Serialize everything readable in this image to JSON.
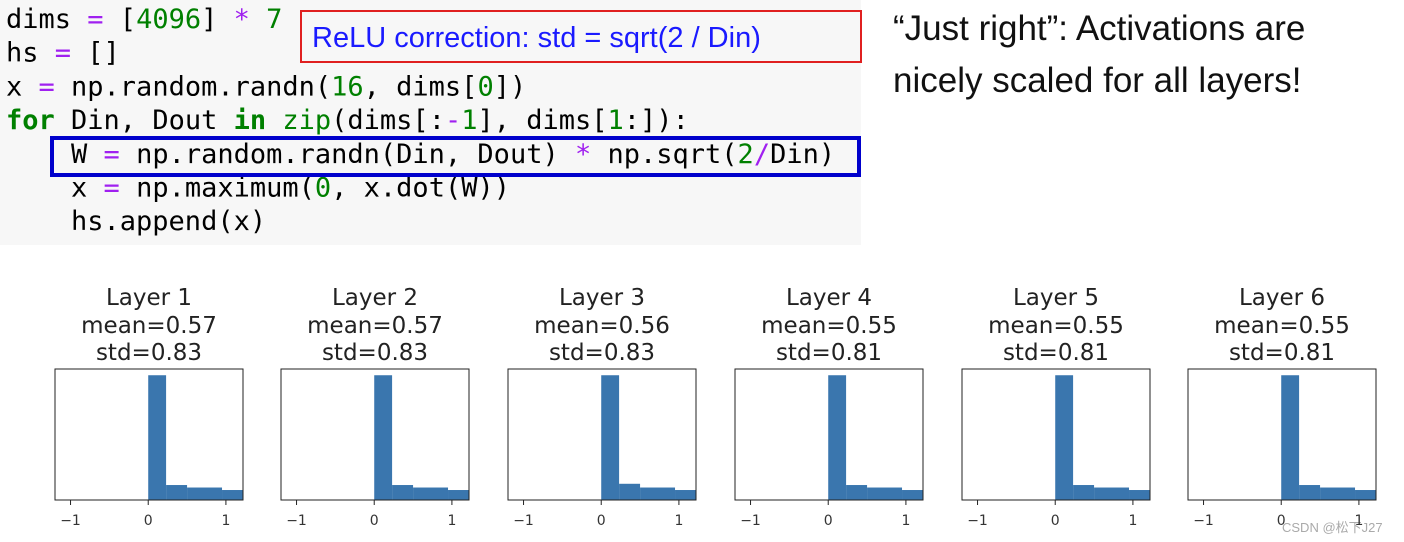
{
  "code": {
    "lines": [
      [
        {
          "text": "dims ",
          "color": "#000"
        },
        {
          "text": "=",
          "color": "#a020f0"
        },
        {
          "text": " [",
          "color": "#000"
        },
        {
          "text": "4096",
          "color": "#008000"
        },
        {
          "text": "] ",
          "color": "#000"
        },
        {
          "text": "*",
          "color": "#a020f0"
        },
        {
          "text": " ",
          "color": "#000"
        },
        {
          "text": "7",
          "color": "#008000"
        }
      ],
      [
        {
          "text": "hs ",
          "color": "#000"
        },
        {
          "text": "=",
          "color": "#a020f0"
        },
        {
          "text": " []",
          "color": "#000"
        }
      ],
      [
        {
          "text": "x ",
          "color": "#000"
        },
        {
          "text": "=",
          "color": "#a020f0"
        },
        {
          "text": " np.random.randn(",
          "color": "#000"
        },
        {
          "text": "16",
          "color": "#008000"
        },
        {
          "text": ", dims[",
          "color": "#000"
        },
        {
          "text": "0",
          "color": "#008000"
        },
        {
          "text": "])",
          "color": "#000"
        }
      ],
      [
        {
          "text": "for",
          "color": "#008000",
          "bold": true
        },
        {
          "text": " Din, Dout ",
          "color": "#000"
        },
        {
          "text": "in",
          "color": "#008000",
          "bold": true
        },
        {
          "text": " ",
          "color": "#000"
        },
        {
          "text": "zip",
          "color": "#008000"
        },
        {
          "text": "(dims[:",
          "color": "#000"
        },
        {
          "text": "-",
          "color": "#a020f0"
        },
        {
          "text": "1",
          "color": "#008000"
        },
        {
          "text": "], dims[",
          "color": "#000"
        },
        {
          "text": "1",
          "color": "#008000"
        },
        {
          "text": ":]):",
          "color": "#000"
        }
      ],
      [
        {
          "text": "    W ",
          "color": "#000"
        },
        {
          "text": "=",
          "color": "#a020f0"
        },
        {
          "text": " np.random.randn(Din, Dout) ",
          "color": "#000"
        },
        {
          "text": "*",
          "color": "#a020f0"
        },
        {
          "text": " np.sqrt(",
          "color": "#000"
        },
        {
          "text": "2",
          "color": "#008000"
        },
        {
          "text": "/",
          "color": "#a020f0"
        },
        {
          "text": "Din)",
          "color": "#000"
        }
      ],
      [
        {
          "text": "    x ",
          "color": "#000"
        },
        {
          "text": "=",
          "color": "#a020f0"
        },
        {
          "text": " np.maximum(",
          "color": "#000"
        },
        {
          "text": "0",
          "color": "#008000"
        },
        {
          "text": ", x.dot(W))",
          "color": "#000"
        }
      ],
      [
        {
          "text": "    hs.append(x)",
          "color": "#000"
        }
      ]
    ]
  },
  "note": "ReLU correction: std = sqrt(2 / Din)",
  "side_text": [
    "“Just right”: Activations are",
    "nicely scaled for all layers!"
  ],
  "watermark": "CSDN @松下J27",
  "chart_data": [
    {
      "type": "histogram",
      "title": "Layer 1",
      "annotations": [
        "mean=0.57",
        "std=0.83"
      ],
      "color": "#3a76ae",
      "bins": [
        0,
        0.23,
        0.5,
        0.95,
        1.22
      ],
      "values": [
        1.0,
        0.12,
        0.1,
        0.08
      ],
      "xlim": [
        -1.2,
        1.22
      ],
      "ylim": [
        0,
        1.05
      ],
      "xticks": [
        {
          "value": -1,
          "label": "−1"
        },
        0,
        1
      ]
    },
    {
      "type": "histogram",
      "title": "Layer 2",
      "annotations": [
        "mean=0.57",
        "std=0.83"
      ],
      "color": "#3a76ae",
      "bins": [
        0,
        0.23,
        0.5,
        0.95,
        1.22
      ],
      "values": [
        1.0,
        0.12,
        0.1,
        0.08
      ],
      "xlim": [
        -1.2,
        1.22
      ],
      "ylim": [
        0,
        1.05
      ],
      "xticks": [
        {
          "value": -1,
          "label": "−1"
        },
        0,
        1
      ]
    },
    {
      "type": "histogram",
      "title": "Layer 3",
      "annotations": [
        "mean=0.56",
        "std=0.83"
      ],
      "color": "#3a76ae",
      "bins": [
        0,
        0.23,
        0.5,
        0.95,
        1.22
      ],
      "values": [
        1.0,
        0.13,
        0.1,
        0.08
      ],
      "xlim": [
        -1.2,
        1.22
      ],
      "ylim": [
        0,
        1.05
      ],
      "xticks": [
        {
          "value": -1,
          "label": "−1"
        },
        0,
        1
      ]
    },
    {
      "type": "histogram",
      "title": "Layer 4",
      "annotations": [
        "mean=0.55",
        "std=0.81"
      ],
      "color": "#3a76ae",
      "bins": [
        0,
        0.23,
        0.5,
        0.95,
        1.22
      ],
      "values": [
        1.0,
        0.12,
        0.1,
        0.08
      ],
      "xlim": [
        -1.2,
        1.22
      ],
      "ylim": [
        0,
        1.05
      ],
      "xticks": [
        {
          "value": -1,
          "label": "−1"
        },
        0,
        1
      ]
    },
    {
      "type": "histogram",
      "title": "Layer 5",
      "annotations": [
        "mean=0.55",
        "std=0.81"
      ],
      "color": "#3a76ae",
      "bins": [
        0,
        0.23,
        0.5,
        0.95,
        1.22
      ],
      "values": [
        1.0,
        0.12,
        0.1,
        0.08
      ],
      "xlim": [
        -1.2,
        1.22
      ],
      "ylim": [
        0,
        1.05
      ],
      "xticks": [
        {
          "value": -1,
          "label": "−1"
        },
        0,
        1
      ]
    },
    {
      "type": "histogram",
      "title": "Layer 6",
      "annotations": [
        "mean=0.55",
        "std=0.81"
      ],
      "color": "#3a76ae",
      "bins": [
        0,
        0.23,
        0.5,
        0.95,
        1.22
      ],
      "values": [
        1.0,
        0.12,
        0.1,
        0.08
      ],
      "xlim": [
        -1.2,
        1.22
      ],
      "ylim": [
        0,
        1.05
      ],
      "xticks": [
        {
          "value": -1,
          "label": "−1"
        },
        0,
        1
      ]
    }
  ]
}
